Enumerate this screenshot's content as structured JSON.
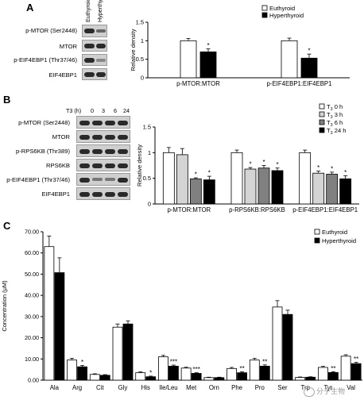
{
  "panelA": {
    "letter": "A",
    "lane_headers": [
      "Euthyroid",
      "Hyperthyroid"
    ],
    "blot_labels": [
      "p-MTOR (Ser2448)",
      "MTOR",
      "p-EIF4EBP1 (Thr37/46)",
      "EIF4EBP1"
    ]
  },
  "panelB": {
    "letter": "B",
    "time_header": "T3 (h)",
    "time_points": [
      "0",
      "3",
      "6",
      "24"
    ],
    "blot_labels": [
      "p-MTOR (Ser2448)",
      "MTOR",
      "p-RPS6KB (Thr389)",
      "RPS6KB",
      "p-EIF4EBP1 (Thr37/46)",
      "EIF4EBP1"
    ]
  },
  "panelC": {
    "letter": "C"
  },
  "watermark": "分子生物",
  "chart_data": [
    {
      "type": "bar",
      "panel": "A",
      "ylabel": "Relative density",
      "ylim": [
        0,
        1.5
      ],
      "yticks": [
        "0",
        "0.5",
        "1",
        "1.5"
      ],
      "categories": [
        "p-MTOR:MTOR",
        "p-EIF4EBP1:EIF4EBP1"
      ],
      "series": [
        {
          "name": "Euthyroid",
          "fill": "#ffffff",
          "values": [
            1.0,
            1.0
          ],
          "errors": [
            0.06,
            0.07
          ],
          "sig": [
            "",
            ""
          ]
        },
        {
          "name": "Hyperthyroid",
          "fill": "#000000",
          "values": [
            0.7,
            0.53
          ],
          "errors": [
            0.08,
            0.11
          ],
          "sig": [
            "*",
            "*"
          ]
        }
      ],
      "legend_position": "top-right"
    },
    {
      "type": "bar",
      "panel": "B",
      "ylabel": "Relative density",
      "ylim": [
        0,
        1.5
      ],
      "yticks": [
        "0",
        "0.5",
        "1",
        "1.5"
      ],
      "categories": [
        "p-MTOR:MTOR",
        "p-RPS6KB:RPS6KB",
        "p-EIF4EBP1:EIF4EBP1"
      ],
      "series": [
        {
          "name": "T3 0 h",
          "fill": "#ffffff",
          "values": [
            1.0,
            1.0,
            1.0
          ],
          "errors": [
            0.1,
            0.05,
            0.05
          ],
          "sig": [
            "",
            "",
            ""
          ]
        },
        {
          "name": "T3 3 h",
          "fill": "#d4d4d4",
          "values": [
            0.96,
            0.68,
            0.6
          ],
          "errors": [
            0.12,
            0.03,
            0.04
          ],
          "sig": [
            "",
            "*",
            "*"
          ]
        },
        {
          "name": "T3 6 h",
          "fill": "#808080",
          "values": [
            0.49,
            0.7,
            0.58
          ],
          "errors": [
            0.02,
            0.05,
            0.04
          ],
          "sig": [
            "*",
            "*",
            "*"
          ]
        },
        {
          "name": "T3 24 h",
          "fill": "#000000",
          "values": [
            0.47,
            0.65,
            0.49
          ],
          "errors": [
            0.07,
            0.05,
            0.06
          ],
          "sig": [
            "*",
            "*",
            "*"
          ]
        }
      ],
      "legend_position": "top-right"
    },
    {
      "type": "bar",
      "panel": "C",
      "ylabel": "Concentration (μM)",
      "ylim": [
        0,
        70
      ],
      "yticks": [
        "0.00",
        "10.00",
        "20.00",
        "30.00",
        "40.00",
        "50.00",
        "60.00",
        "70.00"
      ],
      "categories": [
        "Ala",
        "Arg",
        "Cit",
        "Gly",
        "His",
        "Ile/Leu",
        "Met",
        "Orn",
        "Phe",
        "Pro",
        "Ser",
        "Trp",
        "Tyr",
        "Val"
      ],
      "series": [
        {
          "name": "Euthyroid",
          "fill": "#ffffff",
          "values": [
            63.0,
            9.5,
            2.7,
            25.0,
            3.5,
            11.0,
            5.7,
            1.2,
            5.5,
            9.5,
            34.5,
            1.3,
            6.0,
            11.3
          ],
          "errors": [
            5.0,
            0.8,
            0.3,
            1.5,
            0.4,
            0.7,
            0.4,
            0.2,
            0.5,
            0.8,
            3.0,
            0.2,
            0.5,
            0.7
          ],
          "sig": [
            "",
            "",
            "",
            "",
            "",
            "",
            "",
            "",
            "",
            "",
            "",
            "",
            "",
            ""
          ]
        },
        {
          "name": "Hyperthyroid",
          "fill": "#000000",
          "values": [
            50.7,
            6.3,
            2.3,
            26.5,
            1.6,
            6.6,
            3.2,
            1.2,
            3.5,
            6.6,
            31.0,
            1.4,
            3.6,
            7.8
          ],
          "errors": [
            7.0,
            0.6,
            0.3,
            1.5,
            0.3,
            0.5,
            0.3,
            0.2,
            0.4,
            0.6,
            2.0,
            0.2,
            0.4,
            0.6
          ],
          "sig": [
            "",
            "*",
            "",
            "",
            "*",
            "***",
            "***",
            "",
            "**",
            "**",
            "",
            "",
            "**",
            "**"
          ]
        }
      ],
      "legend_position": "top-right"
    }
  ]
}
